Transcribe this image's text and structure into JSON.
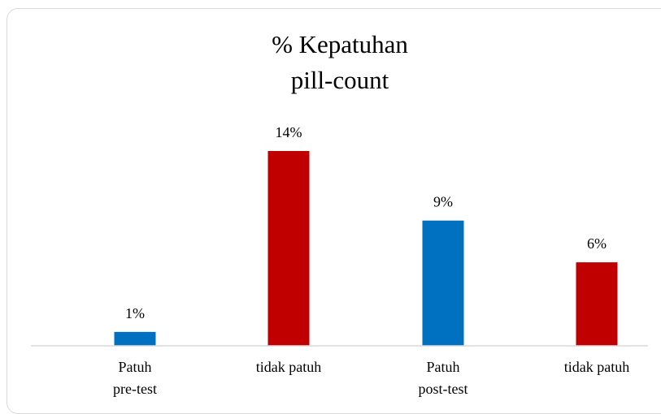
{
  "chart_data": {
    "type": "bar",
    "title": [
      "% Kepatuhan",
      "pill-count"
    ],
    "categories": [
      [
        "Patuh",
        "pre-test"
      ],
      [
        "tidak patuh"
      ],
      [
        "Patuh",
        "post-test"
      ],
      [
        "tidak patuh"
      ]
    ],
    "values": [
      1,
      14,
      9,
      6
    ],
    "data_labels": [
      "1%",
      "14%",
      "9%",
      "6%"
    ],
    "bar_colors": [
      "#0070c0",
      "#c00000",
      "#0070c0",
      "#c00000"
    ],
    "ylim": [
      0,
      18
    ],
    "grid": false,
    "legend": "none"
  }
}
